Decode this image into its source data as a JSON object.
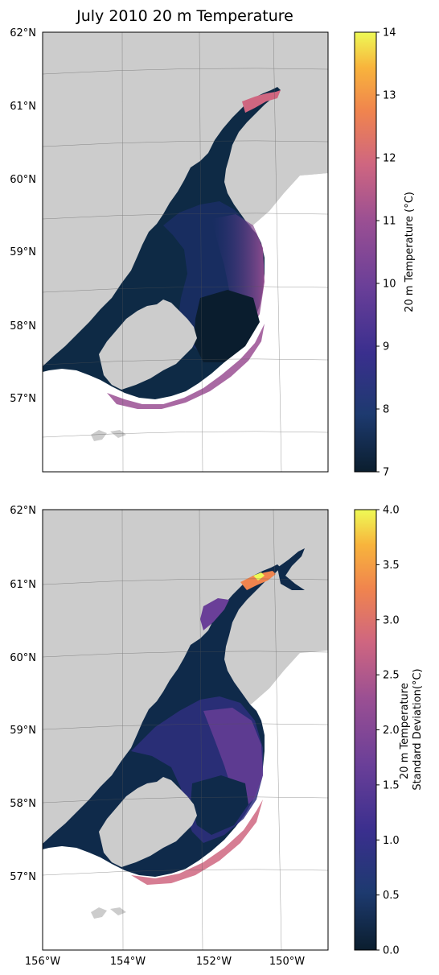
{
  "title": "July 2010 20 m Temperature",
  "maps": [
    {
      "name": "mean-temperature-map",
      "lat_labels": [
        "62°N",
        "61°N",
        "60°N",
        "59°N",
        "58°N",
        "57°N"
      ],
      "lon_labels": [],
      "colorbar": {
        "label_lines": [
          "20 m Temperature (°C)"
        ],
        "min": 7,
        "max": 14,
        "tick_labels": [
          "7",
          "8",
          "9",
          "10",
          "11",
          "12",
          "13",
          "14"
        ]
      }
    },
    {
      "name": "stddev-temperature-map",
      "lat_labels": [
        "62°N",
        "61°N",
        "60°N",
        "59°N",
        "58°N",
        "57°N"
      ],
      "lon_labels": [
        "156°W",
        "154°W",
        "152°W",
        "150°W"
      ],
      "colorbar": {
        "label_lines": [
          "20 m Temperature",
          "Standard Deviation(°C)"
        ],
        "min": 0,
        "max": 4,
        "tick_labels": [
          "0.0",
          "0.5",
          "1.0",
          "1.5",
          "2.0",
          "2.5",
          "3.0",
          "3.5",
          "4.0"
        ]
      }
    }
  ],
  "colors": {
    "land": "#cccccc",
    "ocean_dark": "#0a2236",
    "ocean_mid": "#2e2f7e",
    "ocean_warm": "#8a4d8f",
    "hot": "#e8763f",
    "colormap": [
      "#0b1e2e",
      "#1d3a6f",
      "#3a2f8e",
      "#6a3f98",
      "#9a4f93",
      "#cf6680",
      "#f0844e",
      "#f8b43c",
      "#eefa56"
    ]
  }
}
